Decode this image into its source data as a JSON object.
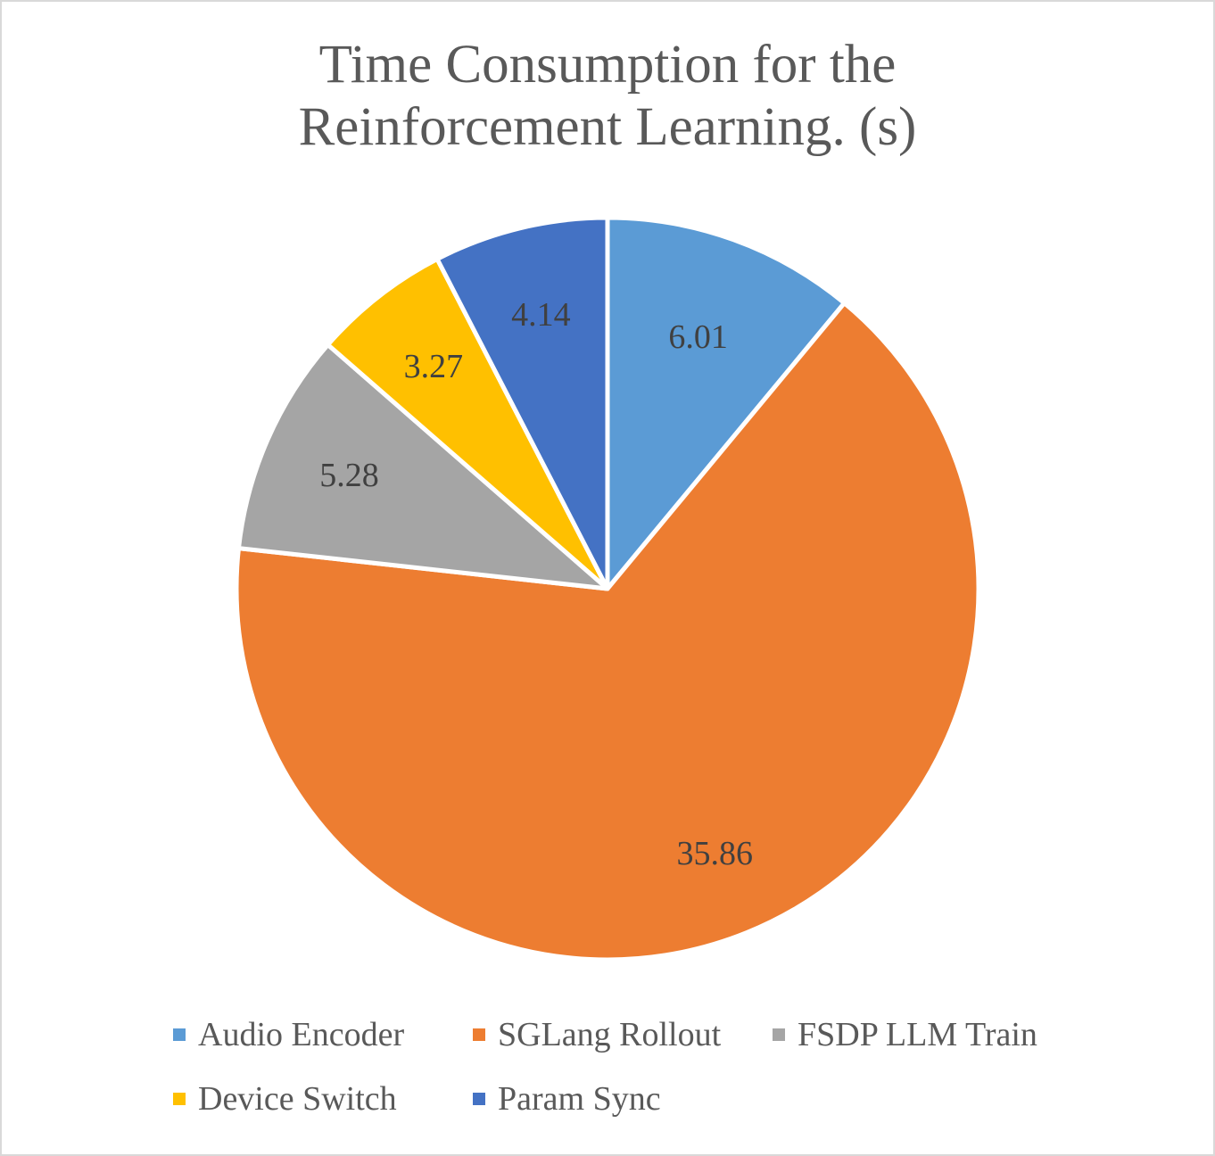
{
  "chart_data": {
    "type": "pie",
    "title_lines": [
      "Time Consumption for the",
      "Reinforcement Learning. (s)"
    ],
    "categories": [
      "Audio Encoder",
      "SGLang Rollout",
      "FSDP LLM Train",
      "Device Switch",
      "Param Sync"
    ],
    "values": [
      6.01,
      35.86,
      5.28,
      3.27,
      4.14
    ],
    "value_labels": [
      "6.01",
      "35.86",
      "5.28",
      "3.27",
      "4.14"
    ],
    "colors": [
      "#5b9bd5",
      "#ed7d31",
      "#a5a5a5",
      "#ffc000",
      "#4472c4"
    ],
    "legend_position": "bottom",
    "start_angle": "12 o'clock",
    "direction": "clockwise"
  }
}
